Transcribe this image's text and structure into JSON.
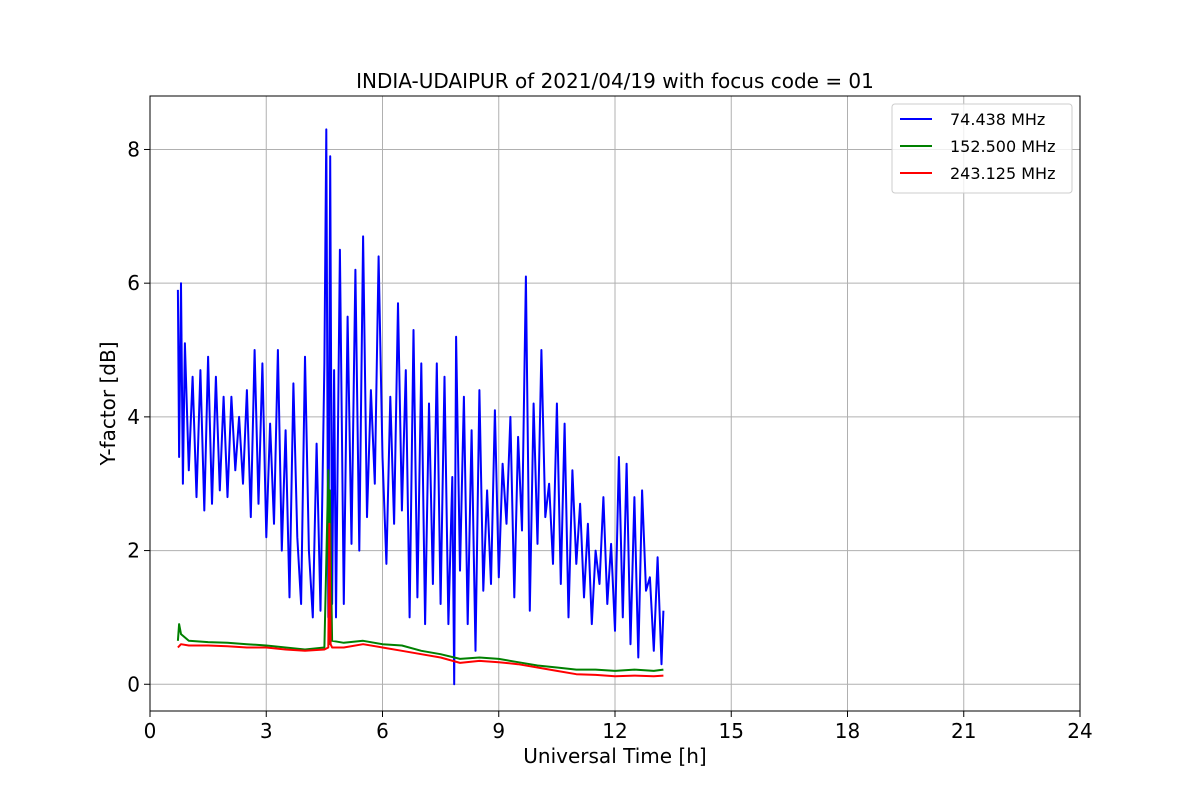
{
  "chart_data": {
    "type": "line",
    "title": "INDIA-UDAIPUR of 2021/04/19 with focus code = 01",
    "xlabel": "Universal Time [h]",
    "ylabel": "Y-factor [dB]",
    "xlim": [
      0,
      24
    ],
    "ylim": [
      -0.4,
      8.8
    ],
    "xticks": [
      0,
      3,
      6,
      9,
      12,
      15,
      18,
      21,
      24
    ],
    "yticks": [
      0,
      2,
      4,
      6,
      8
    ],
    "grid": true,
    "legend_position": "top-right",
    "series": [
      {
        "name": "74.438 MHz",
        "color": "#0000ff",
        "linewidth": 2,
        "x": [
          0.72,
          0.75,
          0.8,
          0.85,
          0.9,
          1.0,
          1.1,
          1.2,
          1.3,
          1.4,
          1.5,
          1.6,
          1.7,
          1.8,
          1.9,
          2.0,
          2.1,
          2.2,
          2.3,
          2.4,
          2.5,
          2.6,
          2.7,
          2.8,
          2.9,
          3.0,
          3.1,
          3.2,
          3.3,
          3.4,
          3.5,
          3.6,
          3.7,
          3.8,
          3.9,
          4.0,
          4.1,
          4.2,
          4.3,
          4.4,
          4.5,
          4.55,
          4.6,
          4.65,
          4.7,
          4.75,
          4.8,
          4.9,
          5.0,
          5.1,
          5.2,
          5.3,
          5.4,
          5.5,
          5.6,
          5.7,
          5.8,
          5.9,
          6.0,
          6.1,
          6.2,
          6.3,
          6.4,
          6.5,
          6.6,
          6.7,
          6.8,
          6.9,
          7.0,
          7.1,
          7.2,
          7.3,
          7.4,
          7.5,
          7.6,
          7.7,
          7.8,
          7.85,
          7.9,
          8.0,
          8.1,
          8.2,
          8.3,
          8.4,
          8.5,
          8.6,
          8.7,
          8.8,
          8.9,
          9.0,
          9.1,
          9.2,
          9.3,
          9.4,
          9.5,
          9.6,
          9.7,
          9.8,
          9.9,
          10.0,
          10.1,
          10.2,
          10.3,
          10.4,
          10.5,
          10.6,
          10.7,
          10.8,
          10.9,
          11.0,
          11.1,
          11.2,
          11.3,
          11.4,
          11.5,
          11.6,
          11.7,
          11.8,
          11.9,
          12.0,
          12.1,
          12.2,
          12.3,
          12.4,
          12.5,
          12.6,
          12.7,
          12.8,
          12.9,
          13.0,
          13.1,
          13.2,
          13.25
        ],
        "y": [
          5.9,
          3.4,
          6.0,
          3.0,
          5.1,
          3.2,
          4.6,
          2.8,
          4.7,
          2.6,
          4.9,
          2.7,
          4.6,
          2.9,
          4.3,
          2.8,
          4.3,
          3.2,
          4.0,
          3.0,
          4.4,
          2.5,
          5.0,
          2.7,
          4.8,
          2.2,
          3.9,
          2.4,
          5.0,
          2.0,
          3.8,
          1.3,
          4.5,
          2.2,
          1.2,
          4.9,
          2.0,
          1.0,
          3.6,
          1.1,
          4.8,
          8.3,
          1.0,
          7.9,
          1.2,
          4.7,
          1.0,
          6.5,
          1.2,
          5.5,
          2.1,
          6.2,
          2.0,
          6.7,
          2.5,
          4.4,
          3.0,
          6.4,
          3.4,
          1.8,
          4.3,
          2.4,
          5.7,
          2.6,
          4.7,
          1.0,
          5.3,
          1.3,
          4.8,
          0.9,
          4.2,
          1.5,
          4.8,
          1.2,
          4.6,
          0.9,
          3.1,
          0.0,
          5.2,
          1.7,
          4.3,
          0.9,
          3.8,
          0.5,
          4.4,
          1.4,
          2.9,
          1.5,
          4.1,
          1.6,
          3.3,
          2.4,
          4.0,
          1.3,
          3.7,
          2.3,
          6.1,
          1.1,
          4.2,
          2.1,
          5.0,
          2.5,
          3.0,
          1.8,
          4.2,
          1.5,
          3.9,
          1.0,
          3.2,
          1.8,
          2.7,
          1.3,
          2.4,
          0.9,
          2.0,
          1.5,
          2.8,
          1.2,
          2.1,
          0.8,
          3.4,
          1.0,
          3.3,
          0.6,
          2.8,
          0.4,
          2.9,
          1.4,
          1.6,
          0.5,
          1.9,
          0.3,
          1.1
        ],
        "sequence": 1
      },
      {
        "name": "152.500 MHz",
        "color": "#008000",
        "linewidth": 2,
        "x": [
          0.72,
          0.75,
          0.8,
          1.0,
          1.5,
          2.0,
          2.5,
          3.0,
          3.5,
          4.0,
          4.5,
          4.6,
          4.62,
          4.64,
          4.7,
          5.0,
          5.5,
          6.0,
          6.5,
          7.0,
          7.5,
          8.0,
          8.5,
          9.0,
          9.5,
          10.0,
          10.5,
          11.0,
          11.5,
          12.0,
          12.5,
          13.0,
          13.25
        ],
        "y": [
          0.65,
          0.9,
          0.75,
          0.65,
          0.63,
          0.62,
          0.6,
          0.58,
          0.55,
          0.52,
          0.55,
          3.2,
          0.6,
          2.9,
          0.65,
          0.62,
          0.65,
          0.6,
          0.58,
          0.5,
          0.45,
          0.38,
          0.4,
          0.38,
          0.33,
          0.28,
          0.25,
          0.22,
          0.22,
          0.2,
          0.22,
          0.2,
          0.22
        ],
        "sequence": 2
      },
      {
        "name": "243.125 MHz",
        "color": "#ff0000",
        "linewidth": 2,
        "x": [
          0.72,
          0.8,
          1.0,
          1.5,
          2.0,
          2.5,
          3.0,
          3.5,
          4.0,
          4.5,
          4.6,
          4.63,
          4.66,
          4.7,
          5.0,
          5.5,
          6.0,
          6.5,
          7.0,
          7.5,
          8.0,
          8.5,
          9.0,
          9.5,
          10.0,
          10.5,
          11.0,
          11.5,
          12.0,
          12.5,
          13.0,
          13.25
        ],
        "y": [
          0.55,
          0.6,
          0.58,
          0.58,
          0.57,
          0.55,
          0.55,
          0.52,
          0.5,
          0.52,
          0.55,
          2.4,
          0.6,
          0.55,
          0.55,
          0.6,
          0.55,
          0.5,
          0.45,
          0.4,
          0.32,
          0.35,
          0.33,
          0.3,
          0.25,
          0.2,
          0.15,
          0.14,
          0.12,
          0.13,
          0.12,
          0.13
        ],
        "sequence": 3
      }
    ]
  }
}
